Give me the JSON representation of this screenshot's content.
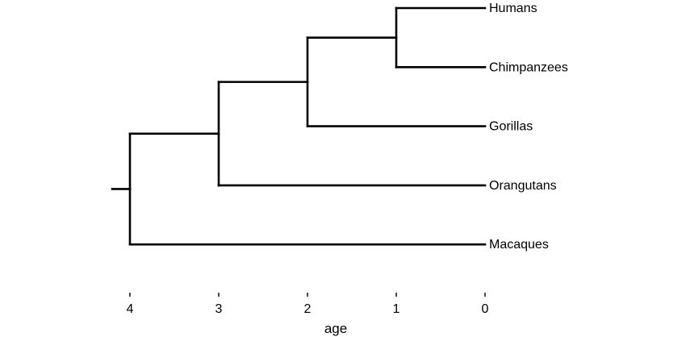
{
  "tree": {
    "tips": [
      {
        "label": "Humans",
        "order": 0
      },
      {
        "label": "Chimpanzees",
        "order": 1
      },
      {
        "label": "Gorillas",
        "order": 2
      },
      {
        "label": "Orangutans",
        "order": 3
      },
      {
        "label": "Macaques",
        "order": 4
      }
    ],
    "nodes": [
      {
        "age": 1,
        "children": [
          "Humans",
          "Chimpanzees"
        ]
      },
      {
        "age": 2,
        "children": [
          "node:1",
          "Gorillas"
        ]
      },
      {
        "age": 3,
        "children": [
          "node:2",
          "Orangutans"
        ]
      },
      {
        "age": 4,
        "children": [
          "node:3",
          "Macaques"
        ]
      }
    ],
    "root_age": 4,
    "has_root_edge": true
  },
  "axis": {
    "title": "age",
    "ticks": [
      4,
      3,
      2,
      1,
      0
    ],
    "tick_labels": [
      "4",
      "3",
      "2",
      "1",
      "0"
    ],
    "reversed": true
  },
  "colors": {
    "line": "#000000",
    "text": "#000000",
    "background": "#ffffff"
  }
}
